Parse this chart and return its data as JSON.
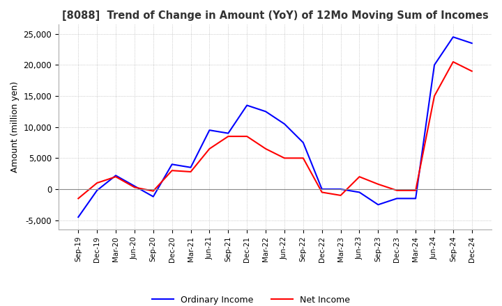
{
  "title": "[8088]  Trend of Change in Amount (YoY) of 12Mo Moving Sum of Incomes",
  "ylabel": "Amount (million yen)",
  "ylim": [
    -6500,
    26500
  ],
  "yticks": [
    -5000,
    0,
    5000,
    10000,
    15000,
    20000,
    25000
  ],
  "x_labels": [
    "Sep-19",
    "Dec-19",
    "Mar-20",
    "Jun-20",
    "Sep-20",
    "Dec-20",
    "Mar-21",
    "Jun-21",
    "Sep-21",
    "Dec-21",
    "Mar-22",
    "Jun-22",
    "Sep-22",
    "Dec-22",
    "Mar-23",
    "Jun-23",
    "Sep-23",
    "Dec-23",
    "Mar-24",
    "Jun-24",
    "Sep-24",
    "Dec-24"
  ],
  "ordinary_income": [
    -4500,
    -200,
    2200,
    500,
    -1200,
    4000,
    3500,
    9500,
    9000,
    13500,
    12500,
    10500,
    7500,
    0,
    0,
    -500,
    -2500,
    -1500,
    -1500,
    20000,
    24500,
    23500
  ],
  "net_income": [
    -1500,
    1000,
    2000,
    300,
    -300,
    3000,
    2800,
    6500,
    8500,
    8500,
    6500,
    5000,
    5000,
    -500,
    -1000,
    2000,
    800,
    -200,
    -200,
    15000,
    20500,
    19000
  ],
  "ordinary_color": "#0000ff",
  "net_color": "#ff0000",
  "grid_color": "#aaaaaa",
  "bg_color": "#ffffff",
  "legend_labels": [
    "Ordinary Income",
    "Net Income"
  ]
}
